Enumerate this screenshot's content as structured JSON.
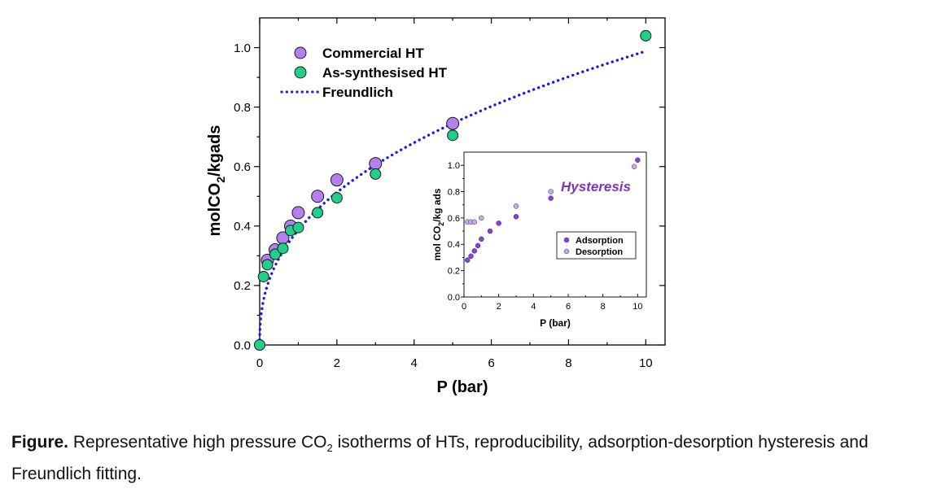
{
  "chart_data": [
    {
      "type": "scatter",
      "title": "",
      "xlabel": "P (bar)",
      "ylabel_parts": [
        "molCO",
        "2",
        "/kgads"
      ],
      "xlim": [
        0,
        10.5
      ],
      "ylim": [
        0,
        1.1
      ],
      "xticks": [
        0,
        2,
        4,
        6,
        8,
        10
      ],
      "yticks": [
        0.0,
        0.2,
        0.4,
        0.6,
        0.8,
        1.0
      ],
      "ytick_labels": [
        "0.0",
        "0.2",
        "0.4",
        "0.6",
        "0.8",
        "1.0"
      ],
      "grid": false,
      "legend_position": "top-left",
      "series": [
        {
          "name": "Commercial HT",
          "kind": "marker",
          "color": "#b57ff0",
          "x": [
            0.2,
            0.4,
            0.6,
            0.8,
            1.0,
            1.5,
            2.0,
            3.0,
            5.0
          ],
          "y": [
            0.285,
            0.32,
            0.36,
            0.4,
            0.445,
            0.5,
            0.555,
            0.61,
            0.745
          ]
        },
        {
          "name": "As-synthesised HT",
          "kind": "marker",
          "color": "#1fcf8a",
          "x": [
            0.0,
            0.1,
            0.2,
            0.4,
            0.6,
            0.8,
            1.0,
            1.5,
            2.0,
            3.0,
            5.0,
            10.0
          ],
          "y": [
            0.0,
            0.23,
            0.27,
            0.305,
            0.325,
            0.385,
            0.395,
            0.445,
            0.495,
            0.575,
            0.705,
            1.04
          ]
        },
        {
          "name": "Freundlich",
          "kind": "fit",
          "color": "#1b1be8",
          "model": "q = k * P^n",
          "k": 0.387,
          "n": 0.407
        }
      ]
    },
    {
      "type": "scatter",
      "title": "Hysteresis",
      "xlabel": "P (bar)",
      "ylabel_parts": [
        "mol CO",
        "2",
        "/kg ads"
      ],
      "xlim": [
        0,
        10.5
      ],
      "ylim": [
        0,
        1.1
      ],
      "xticks": [
        0,
        2,
        4,
        6,
        8,
        10
      ],
      "yticks": [
        0.0,
        0.2,
        0.4,
        0.6,
        0.8,
        1.0
      ],
      "ytick_labels": [
        "0.0",
        "0.2",
        "0.4",
        "0.6",
        "0.8",
        "1.0"
      ],
      "grid": false,
      "legend_position": "middle-right",
      "series": [
        {
          "name": "Adsorption",
          "color": "#8a3fd6",
          "x": [
            0.2,
            0.4,
            0.6,
            0.8,
            1.0,
            1.5,
            2.0,
            3.0,
            5.0,
            10.0
          ],
          "y": [
            0.28,
            0.31,
            0.35,
            0.39,
            0.44,
            0.5,
            0.56,
            0.61,
            0.75,
            1.04
          ]
        },
        {
          "name": "Desorption",
          "color": "#c8a7ee",
          "x": [
            0.2,
            0.4,
            0.6,
            1.0,
            3.0,
            5.0,
            9.8
          ],
          "y": [
            0.57,
            0.57,
            0.57,
            0.6,
            0.69,
            0.8,
            0.99
          ]
        }
      ]
    }
  ],
  "caption": {
    "label": "Figure.",
    "text_before": " Representative high pressure CO",
    "sub": "2",
    "text_after": " isotherms of HTs, reproducibility, adsorption-desorption hysteresis and Freundlich fitting."
  },
  "colors": {
    "axis": "#000000",
    "hysteresis_title": "#7a35b8",
    "marker_edge": "#1a1a1a"
  }
}
